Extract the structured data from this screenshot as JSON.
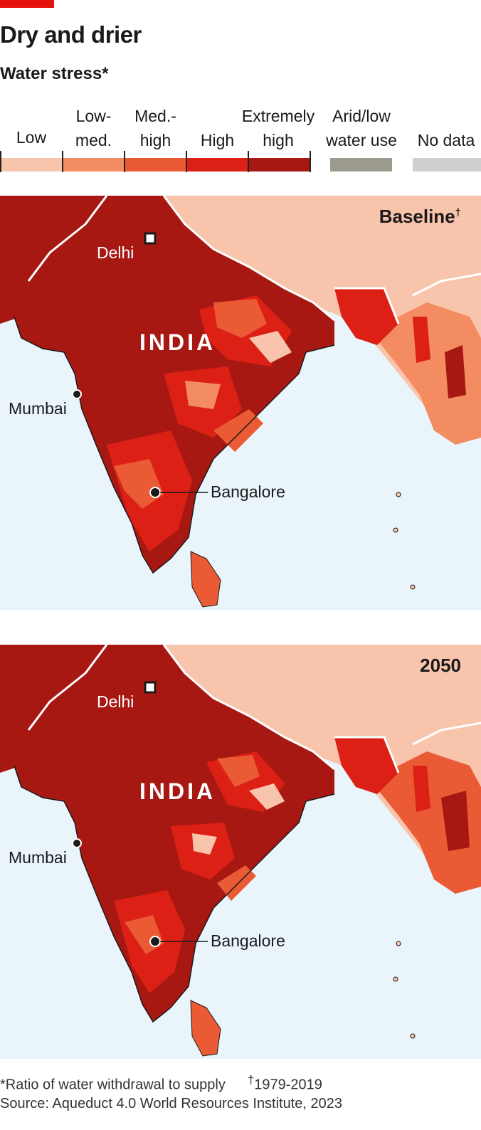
{
  "header": {
    "title": "Dry and drier",
    "subtitle": "Water stress*"
  },
  "legend": {
    "items": [
      {
        "line1": "",
        "line2": "Low",
        "color": "#f9c4ac"
      },
      {
        "line1": "Low-",
        "line2": "med.",
        "color": "#f48c62"
      },
      {
        "line1": "Med.-",
        "line2": "high",
        "color": "#ea5a34"
      },
      {
        "line1": "",
        "line2": "High",
        "color": "#dc2016"
      },
      {
        "line1": "Extremely",
        "line2": "high",
        "color": "#a81813"
      },
      {
        "line1": "Arid/low",
        "line2": "water use",
        "color": "#9c9a8c"
      },
      {
        "line1": "",
        "line2": "No data",
        "color": "#cfcfcf"
      }
    ]
  },
  "maps": [
    {
      "label": "Baseline",
      "label_mark": "†",
      "country": "INDIA",
      "cities": {
        "delhi": "Delhi",
        "mumbai": "Mumbai",
        "bangalore": "Bangalore"
      }
    },
    {
      "label": "2050",
      "label_mark": "",
      "country": "INDIA",
      "cities": {
        "delhi": "Delhi",
        "mumbai": "Mumbai",
        "bangalore": "Bangalore"
      }
    }
  ],
  "footer": {
    "note": "*Ratio of water withdrawal to supply",
    "note_mark": "†",
    "note_period": "1979-2019",
    "source": "Source: Aqueduct 4.0 World Resources Institute, 2023"
  },
  "colors": {
    "sea": "#e9f5fb",
    "extremely_high": "#a81813",
    "high": "#dc2016",
    "med_high": "#ea5a34",
    "low_med": "#f48c62",
    "low": "#f9c4ac",
    "accent": "#e3120b"
  }
}
